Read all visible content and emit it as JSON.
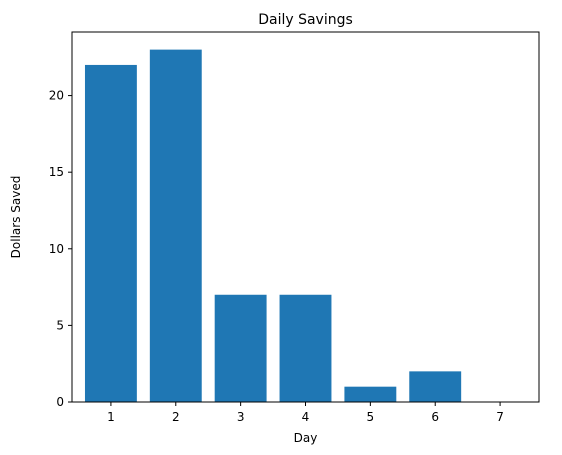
{
  "chart_data": {
    "type": "bar",
    "title": "Daily Savings",
    "xlabel": "Day",
    "ylabel": "Dollars Saved",
    "categories": [
      "1",
      "2",
      "3",
      "4",
      "5",
      "6",
      "7"
    ],
    "values": [
      22,
      23,
      7,
      7,
      1,
      2,
      0
    ],
    "ylim": [
      0,
      24.15
    ],
    "yticks": [
      0,
      5,
      10,
      15,
      20
    ],
    "bar_color": "#1f77b4",
    "grid": false
  }
}
